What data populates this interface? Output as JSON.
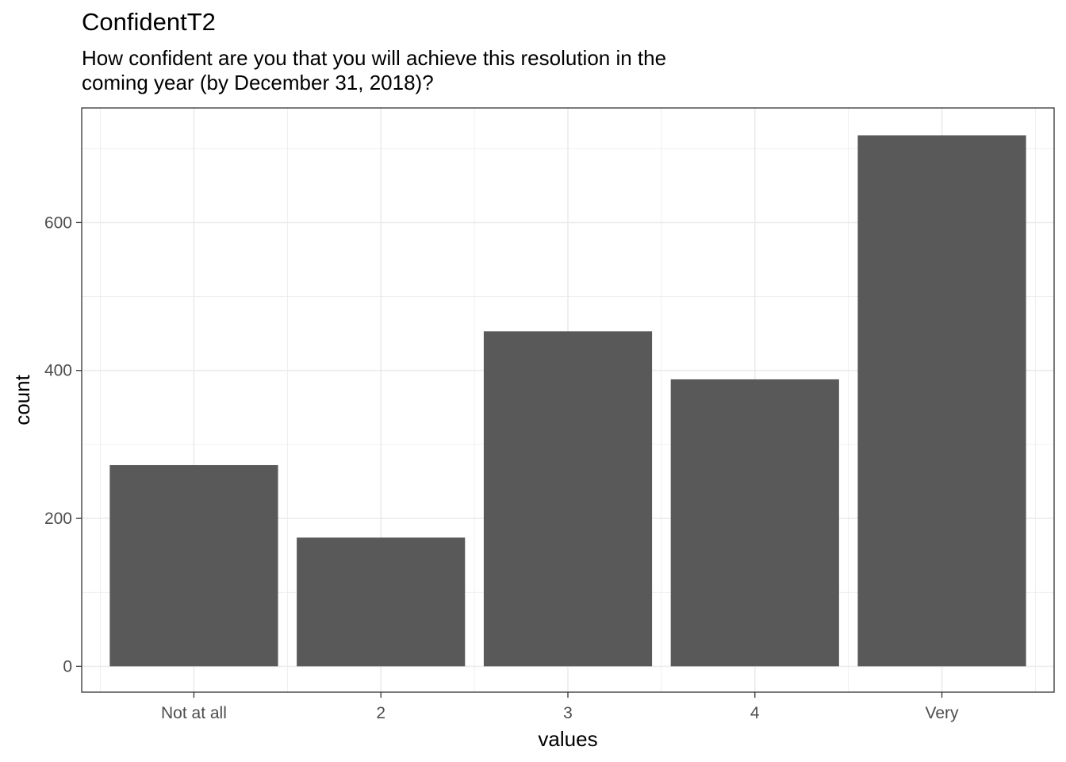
{
  "header": {
    "title": "ConfidentT2",
    "subtitle_lines": [
      "How confident are you that you will achieve this resolution in the",
      "coming year (by December 31, 2018)?"
    ]
  },
  "chart_data": {
    "type": "bar",
    "title": "ConfidentT2",
    "subtitle": "How confident are you that you will achieve this resolution in the coming year (by December 31, 2018)?",
    "xlabel": "values",
    "ylabel": "count",
    "categories": [
      "Not at all",
      "2",
      "3",
      "4",
      "Very"
    ],
    "values": [
      272,
      174,
      453,
      388,
      718
    ],
    "ylim": [
      -35,
      755
    ],
    "yticks": [
      0,
      200,
      400,
      600
    ],
    "grid": true,
    "bar_color": "#595959",
    "grid_color": "#ebebeb",
    "panel_border_color": "#333333"
  }
}
